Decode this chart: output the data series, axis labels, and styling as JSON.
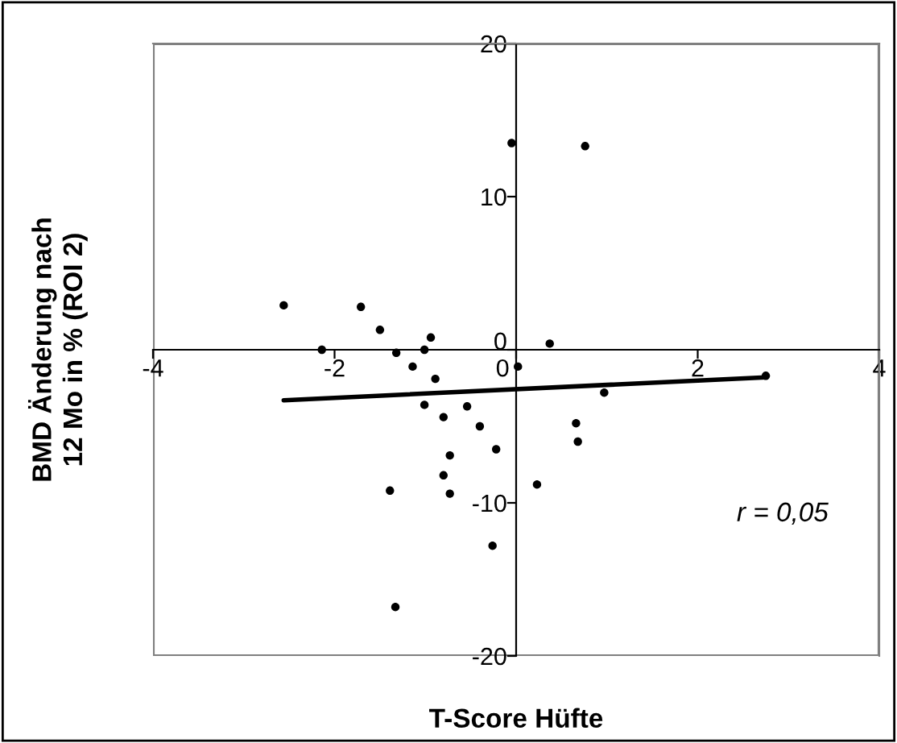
{
  "chart_data": {
    "type": "scatter",
    "xlabel": "T-Score Hüfte",
    "ylabel": "BMD Änderung nach\n12 Mo in % (ROI 2)",
    "xlim": [
      -4,
      4
    ],
    "xticks": [
      -4,
      -2,
      0,
      2,
      4
    ],
    "ylim": [
      -20,
      20
    ],
    "yticks": [
      -20,
      -10,
      0,
      10,
      20
    ],
    "grid": false,
    "marker": "circle",
    "annotations": [
      "r = 0,05"
    ],
    "series": [
      {
        "color": "#000000",
        "x": [
          -2.56,
          -2.14,
          -1.71,
          -1.5,
          -1.32,
          -1.14,
          -1.01,
          -0.94,
          -0.89,
          -0.05,
          0.02,
          0.37,
          0.76,
          2.75,
          0.97,
          -1.01,
          -0.54,
          -0.8,
          -0.4,
          -0.22,
          -0.73,
          -0.8,
          -1.39,
          -0.73,
          0.23,
          0.66,
          0.68,
          -0.26,
          -1.33
        ],
        "values": [
          2.9,
          0,
          2.8,
          1.3,
          -0.2,
          -1.1,
          0,
          0.8,
          -1.9,
          13.5,
          -1.1,
          0.4,
          13.3,
          -1.7,
          -2.8,
          -3.6,
          -3.7,
          -4.4,
          -5.0,
          -6.5,
          -6.9,
          -8.2,
          -9.2,
          -9.4,
          -8.8,
          -4.8,
          -6.0,
          -12.8,
          -16.8
        ]
      },
      {
        "type": "line",
        "color": "#000000",
        "marker": "none",
        "line_style": "solid",
        "x": [
          -2.56,
          2.75
        ],
        "values": [
          -3.3,
          -1.8
        ]
      }
    ]
  }
}
